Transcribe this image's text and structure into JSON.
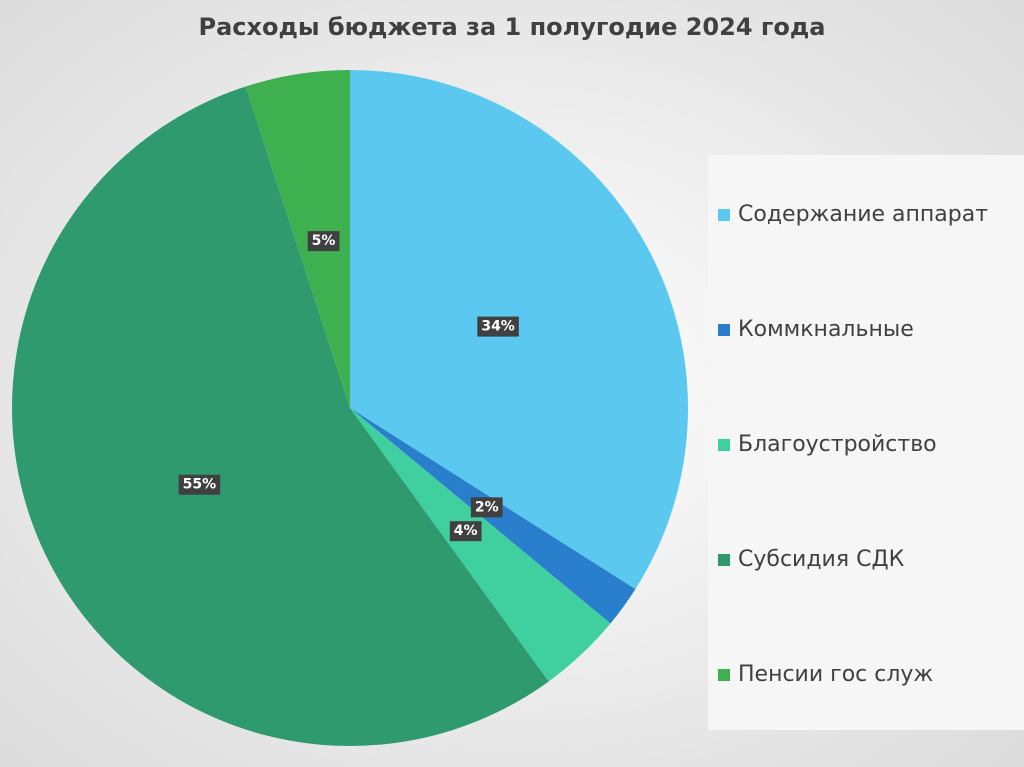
{
  "chart_data": {
    "type": "pie",
    "title": "Расходы бюджета за 1 полугодие 2024 года",
    "categories": [
      "Содержание аппарат",
      "Коммкнальные",
      "Благоустройство",
      "Субсидия СДК",
      "Пенсии гос служ"
    ],
    "values": [
      34,
      2,
      4,
      55,
      5
    ],
    "value_labels": [
      "34%",
      "2%",
      "4%",
      "55%",
      "5%"
    ],
    "colors": [
      "#5bc8ef",
      "#2a7fcc",
      "#40d0a0",
      "#2e9a6e",
      "#3fb04f"
    ],
    "legend": "right"
  }
}
